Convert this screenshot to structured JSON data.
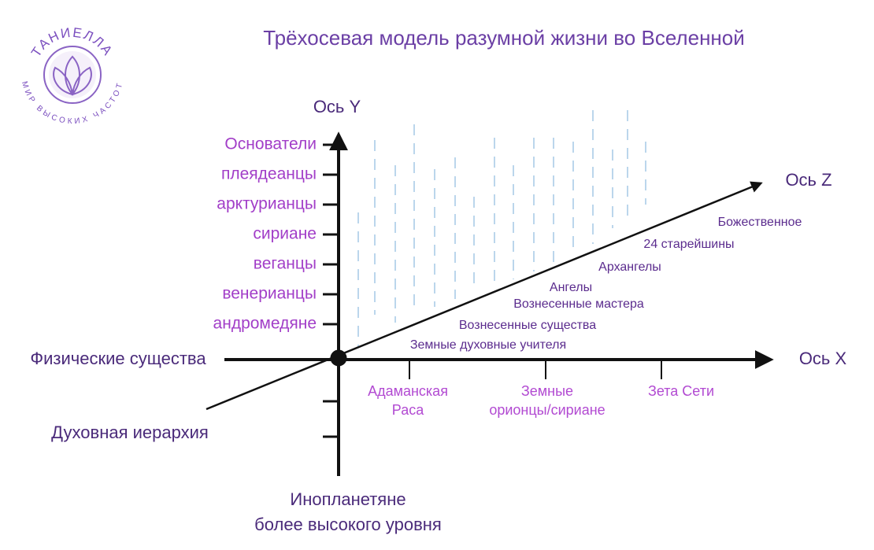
{
  "title": "Трёхосевая модель разумной жизни во Вселенной",
  "logo": {
    "name": "ТАНИЕЛЛА",
    "tagline": "МИР ВЫСОКИХ ЧАСТОТ"
  },
  "axes": {
    "y": "Ось Y",
    "x": "Ось X",
    "z": "Ось Z"
  },
  "y_axis_items": [
    "Основатели",
    "плеядеанцы",
    "арктурианцы",
    "сириане",
    "веганцы",
    "венерианцы",
    "андромедяне"
  ],
  "x_axis_origin_label": "Физические существа",
  "x_axis_items": [
    [
      "Адаманская",
      "Раса"
    ],
    [
      "Земные",
      "орионцы/сириане"
    ],
    [
      "Зета Сети"
    ]
  ],
  "z_axis_origin_label": "Духовная иерархия",
  "z_axis_items": [
    "Божественное",
    "24 старейшины",
    "Архангелы",
    "Ангелы",
    "Вознесенные мастера",
    "Вознесенные существа",
    "Земные духовные учителя"
  ],
  "bottom_label": [
    "Инопланетяне",
    "более высокого уровня"
  ]
}
